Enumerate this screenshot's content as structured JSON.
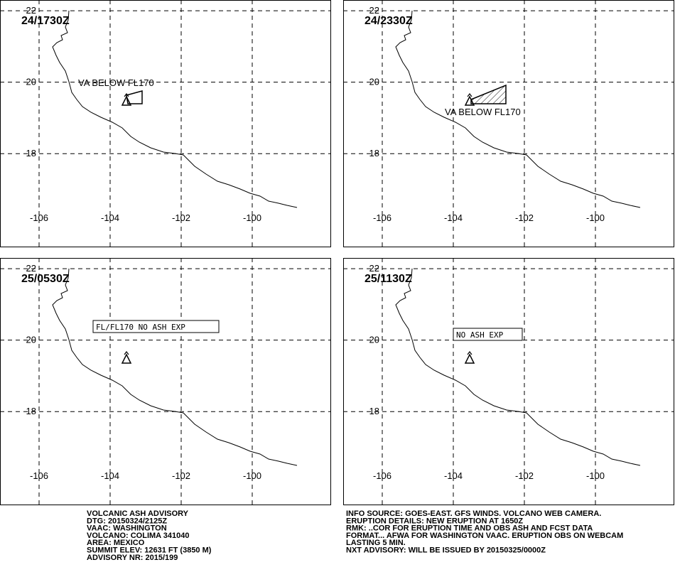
{
  "map": {
    "lon_lim": [
      -107.1,
      -97.8
    ],
    "lat_lim": [
      15.4,
      22.3
    ],
    "lon_ticks": [
      -106,
      -104,
      -102,
      -100
    ],
    "lat_ticks": [
      22,
      20,
      18
    ]
  },
  "panels": [
    {
      "time": "24/1730Z",
      "annotation": "VA BELOW FL170"
    },
    {
      "time": "24/2330Z",
      "annotation": "VA BELOW FL170"
    },
    {
      "time": "25/0530Z",
      "annotation": "FL/FL170 NO ASH EXP"
    },
    {
      "time": "25/1130Z",
      "annotation": "NO ASH EXP"
    }
  ],
  "advisory_left": [
    "VOLCANIC ASH ADVISORY",
    "DTG: 20150324/2125Z",
    "VAAC: WASHINGTON",
    "VOLCANO: COLIMA 341040",
    "AREA: MEXICO",
    "SUMMIT ELEV: 12631 FT (3850 M)",
    "ADVISORY NR: 2015/199"
  ],
  "advisory_right": [
    "INFO SOURCE: GOES-EAST. GFS WINDS. VOLCANO WEB CAMERA.",
    "ERUPTION DETAILS: NEW ERUPTION AT 1650Z",
    "RMK: ..COR FOR ERUPTION TIME AND OBS ASH AND FCST DATA",
    "FORMAT... AFWA FOR WASHINGTON VAAC. ERUPTION OBS ON WEBCAM",
    "LASTING 5 MIN.",
    "NXT ADVISORY: WILL BE ISSUED BY 20150325/0000Z"
  ]
}
